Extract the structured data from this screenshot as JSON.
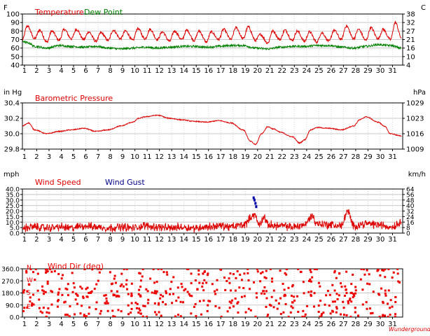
{
  "chart_data": [
    {
      "type": "line",
      "x_ticks": [
        "1",
        "2",
        "3",
        "4",
        "5",
        "6",
        "7",
        "8",
        "9",
        "10",
        "11",
        "12",
        "13",
        "14",
        "15",
        "16",
        "17",
        "18",
        "19",
        "20",
        "21",
        "22",
        "23",
        "24",
        "25",
        "26",
        "27",
        "28",
        "29",
        "30",
        "31"
      ],
      "left_unit": "F",
      "right_unit": "C",
      "left_ticks": [
        "100",
        "90",
        "80",
        "70",
        "60",
        "50",
        "40"
      ],
      "right_ticks": [
        "38",
        "32",
        "27",
        "21",
        "16",
        "10",
        "4"
      ],
      "ylim": [
        40,
        100
      ],
      "grid": true,
      "series": [
        {
          "name": "Temperature",
          "color": "#dd0000",
          "style": "line",
          "base": 72,
          "amp": 9,
          "jitter": 1.5,
          "points": [
            [
              1,
              70
            ],
            [
              1.4,
              86
            ],
            [
              2,
              71
            ],
            [
              2.4,
              81
            ],
            [
              3,
              67
            ],
            [
              3.4,
              80
            ],
            [
              4,
              69
            ],
            [
              4.4,
              82
            ],
            [
              5,
              71
            ],
            [
              5.4,
              82
            ],
            [
              6,
              70
            ],
            [
              6.4,
              79
            ],
            [
              7,
              68
            ],
            [
              7.4,
              78
            ],
            [
              8,
              69
            ],
            [
              8.4,
              81
            ],
            [
              9,
              71
            ],
            [
              9.4,
              80
            ],
            [
              10,
              69
            ],
            [
              10.4,
              83
            ],
            [
              11,
              71
            ],
            [
              11.4,
              82
            ],
            [
              12,
              70
            ],
            [
              12.4,
              79
            ],
            [
              13,
              68
            ],
            [
              13.4,
              80
            ],
            [
              14,
              70
            ],
            [
              14.4,
              81
            ],
            [
              15,
              69
            ],
            [
              15.4,
              80
            ],
            [
              16,
              67
            ],
            [
              16.4,
              79
            ],
            [
              17,
              70
            ],
            [
              17.4,
              82
            ],
            [
              18,
              70
            ],
            [
              18.4,
              84
            ],
            [
              19,
              71
            ],
            [
              19.4,
              85
            ],
            [
              20,
              69
            ],
            [
              20.4,
              76
            ],
            [
              21,
              66
            ],
            [
              21.4,
              80
            ],
            [
              22,
              70
            ],
            [
              22.4,
              81
            ],
            [
              23,
              69
            ],
            [
              23.4,
              80
            ],
            [
              24,
              68
            ],
            [
              24.4,
              79
            ],
            [
              25,
              67
            ],
            [
              25.4,
              78
            ],
            [
              26,
              68
            ],
            [
              26.4,
              81
            ],
            [
              27,
              70
            ],
            [
              27.4,
              86
            ],
            [
              28,
              71
            ],
            [
              28.4,
              82
            ],
            [
              29,
              69
            ],
            [
              29.4,
              84
            ],
            [
              30,
              71
            ],
            [
              30.4,
              82
            ],
            [
              31,
              70
            ],
            [
              31.4,
              90
            ],
            [
              31.9,
              72
            ]
          ]
        },
        {
          "name": "Dew Point",
          "color": "#008000",
          "style": "line",
          "base": 62,
          "amp": 2,
          "jitter": 1.2,
          "points": [
            [
              1,
              68
            ],
            [
              1.5,
              66
            ],
            [
              2,
              62
            ],
            [
              3,
              60
            ],
            [
              4,
              63
            ],
            [
              5,
              62
            ],
            [
              6,
              61
            ],
            [
              7,
              62
            ],
            [
              8,
              60
            ],
            [
              9,
              59
            ],
            [
              10,
              60
            ],
            [
              11,
              61
            ],
            [
              12,
              60
            ],
            [
              13,
              61
            ],
            [
              14,
              62
            ],
            [
              15,
              62
            ],
            [
              16,
              61
            ],
            [
              17,
              62
            ],
            [
              18,
              63
            ],
            [
              19,
              63
            ],
            [
              20,
              60
            ],
            [
              21,
              59
            ],
            [
              22,
              61
            ],
            [
              23,
              62
            ],
            [
              24,
              62
            ],
            [
              25,
              63
            ],
            [
              26,
              63
            ],
            [
              27,
              61
            ],
            [
              28,
              60
            ],
            [
              29,
              62
            ],
            [
              30,
              64
            ],
            [
              31,
              63
            ],
            [
              31.9,
              60
            ]
          ]
        }
      ]
    },
    {
      "type": "line",
      "x_ticks": [
        "1",
        "2",
        "3",
        "4",
        "5",
        "6",
        "7",
        "8",
        "9",
        "10",
        "11",
        "12",
        "13",
        "14",
        "15",
        "16",
        "17",
        "18",
        "19",
        "20",
        "21",
        "22",
        "23",
        "24",
        "25",
        "26",
        "27",
        "28",
        "29",
        "30",
        "31"
      ],
      "left_unit": "in Hg",
      "right_unit": "hPa",
      "left_ticks": [
        "30.4",
        "30.2",
        "30.0",
        "29.8"
      ],
      "right_ticks": [
        "1029",
        "1023",
        "1016",
        "1009"
      ],
      "ylim": [
        29.8,
        30.4
      ],
      "grid": true,
      "series": [
        {
          "name": "Barometric Pressure",
          "color": "#dd0000",
          "style": "line",
          "base": 0,
          "amp": 0.012,
          "jitter": 0.006,
          "points": [
            [
              1,
              30.1
            ],
            [
              1.5,
              30.14
            ],
            [
              2,
              30.05
            ],
            [
              3,
              30.0
            ],
            [
              4,
              30.03
            ],
            [
              5,
              30.05
            ],
            [
              6,
              30.07
            ],
            [
              7,
              30.03
            ],
            [
              8,
              30.05
            ],
            [
              9,
              30.1
            ],
            [
              10,
              30.15
            ],
            [
              10.5,
              30.2
            ],
            [
              11,
              30.22
            ],
            [
              12,
              30.24
            ],
            [
              13,
              30.2
            ],
            [
              14,
              30.18
            ],
            [
              15,
              30.16
            ],
            [
              16,
              30.15
            ],
            [
              17,
              30.17
            ],
            [
              18,
              30.14
            ],
            [
              19,
              30.05
            ],
            [
              19.6,
              29.9
            ],
            [
              20,
              29.86
            ],
            [
              20.5,
              30.0
            ],
            [
              21,
              30.09
            ],
            [
              21.5,
              30.06
            ],
            [
              22,
              30.02
            ],
            [
              23,
              29.96
            ],
            [
              23.6,
              29.88
            ],
            [
              24,
              29.92
            ],
            [
              24.5,
              30.05
            ],
            [
              25,
              30.08
            ],
            [
              26,
              30.07
            ],
            [
              27,
              30.05
            ],
            [
              28,
              30.1
            ],
            [
              28.5,
              30.18
            ],
            [
              29,
              30.22
            ],
            [
              30,
              30.15
            ],
            [
              30.5,
              30.1
            ],
            [
              31,
              30.0
            ],
            [
              31.9,
              29.97
            ]
          ]
        }
      ]
    },
    {
      "type": "line",
      "x_ticks": [
        "1",
        "2",
        "3",
        "4",
        "5",
        "6",
        "7",
        "8",
        "9",
        "10",
        "11",
        "12",
        "13",
        "14",
        "15",
        "16",
        "17",
        "18",
        "19",
        "20",
        "21",
        "22",
        "23",
        "24",
        "25",
        "26",
        "27",
        "28",
        "29",
        "30",
        "31"
      ],
      "left_unit": "mph",
      "right_unit": "km/h",
      "left_ticks": [
        "40.0",
        "35.0",
        "30.0",
        "25.0",
        "20.0",
        "15.0",
        "10.0",
        "5.0",
        "0.0"
      ],
      "right_ticks": [
        "64",
        "56",
        "48",
        "40",
        "32",
        "24",
        "16",
        "8",
        "0"
      ],
      "ylim": [
        0,
        40
      ],
      "grid": true,
      "series": [
        {
          "name": "Wind Speed",
          "color": "#dd0000",
          "style": "line",
          "base": 0,
          "amp": 4,
          "jitter": 2.5,
          "points": [
            [
              1,
              5
            ],
            [
              2,
              6
            ],
            [
              3,
              5
            ],
            [
              4,
              6
            ],
            [
              5,
              5
            ],
            [
              6,
              7
            ],
            [
              7,
              6
            ],
            [
              8,
              5
            ],
            [
              9,
              6
            ],
            [
              10,
              5
            ],
            [
              11,
              7
            ],
            [
              12,
              6
            ],
            [
              13,
              5
            ],
            [
              14,
              6
            ],
            [
              15,
              5
            ],
            [
              16,
              6
            ],
            [
              17,
              7
            ],
            [
              18,
              6
            ],
            [
              19,
              8
            ],
            [
              19.9,
              17
            ],
            [
              20.3,
              8
            ],
            [
              20.7,
              15
            ],
            [
              21,
              8
            ],
            [
              22,
              7
            ],
            [
              23,
              6
            ],
            [
              24,
              8
            ],
            [
              24.6,
              16
            ],
            [
              25,
              9
            ],
            [
              26,
              8
            ],
            [
              27,
              7
            ],
            [
              27.5,
              20
            ],
            [
              28,
              7
            ],
            [
              29,
              9
            ],
            [
              30,
              8
            ],
            [
              31,
              6
            ],
            [
              31.9,
              10
            ]
          ]
        },
        {
          "name": "Wind Gust",
          "color": "#0000aa",
          "style": "points",
          "base": 0,
          "amp": 0,
          "jitter": 0,
          "points": [
            [
              19.85,
              32
            ],
            [
              19.92,
              30
            ],
            [
              20.0,
              27
            ],
            [
              20.06,
              24
            ]
          ]
        }
      ]
    },
    {
      "type": "scatter",
      "x_ticks": [
        "1",
        "2",
        "3",
        "4",
        "5",
        "6",
        "7",
        "8",
        "9",
        "10",
        "11",
        "12",
        "13",
        "14",
        "15",
        "16",
        "17",
        "18",
        "19",
        "20",
        "21",
        "22",
        "23",
        "24",
        "25",
        "26",
        "27",
        "28",
        "29",
        "30",
        "31"
      ],
      "left_ticks": [
        "360.0",
        "270.0",
        "180.0",
        "90.0",
        "0.0"
      ],
      "inner_labels": [
        "N",
        "W",
        "S",
        "E"
      ],
      "watermark": "Wunderground",
      "ylim": [
        0,
        360
      ],
      "grid": true,
      "series": [
        {
          "name": "Wind Dir (deg)",
          "color": "#ee0000",
          "style": "scatter",
          "count": 520
        }
      ]
    }
  ]
}
